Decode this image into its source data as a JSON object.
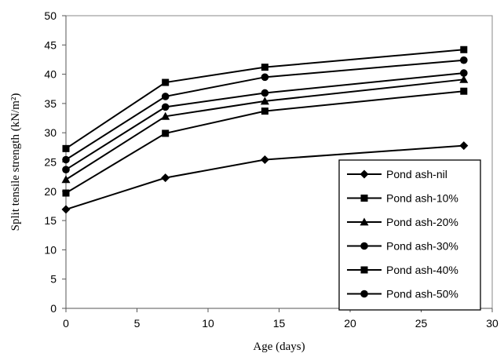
{
  "chart_data": {
    "type": "line",
    "title": "",
    "xlabel": "Age (days)",
    "ylabel": "Split tensile strength (kN/m²)",
    "xlim": [
      0,
      30
    ],
    "ylim": [
      0,
      50
    ],
    "xticks": [
      0,
      5,
      10,
      15,
      20,
      25,
      30
    ],
    "yticks": [
      0,
      5,
      10,
      15,
      20,
      25,
      30,
      35,
      40,
      45,
      50
    ],
    "grid": false,
    "legend_position": "bottom-right",
    "x": [
      0,
      7,
      14,
      28
    ],
    "series": [
      {
        "name": "Pond ash-nil",
        "marker": "diamond",
        "values": [
          16.9,
          22.3,
          25.4,
          27.8
        ]
      },
      {
        "name": "Pond ash-10%",
        "marker": "square",
        "values": [
          19.7,
          29.9,
          33.7,
          37.1
        ]
      },
      {
        "name": "Pond ash-20%",
        "marker": "triangle",
        "values": [
          22.0,
          32.8,
          35.4,
          39.1
        ]
      },
      {
        "name": "Pond ash-30%",
        "marker": "circle",
        "values": [
          23.7,
          34.4,
          36.8,
          40.2
        ]
      },
      {
        "name": "Pond ash-40%",
        "marker": "square",
        "values": [
          27.3,
          38.6,
          41.2,
          44.2
        ]
      },
      {
        "name": "Pond ash-50%",
        "marker": "circle",
        "values": [
          25.4,
          36.2,
          39.5,
          42.4
        ]
      }
    ]
  }
}
